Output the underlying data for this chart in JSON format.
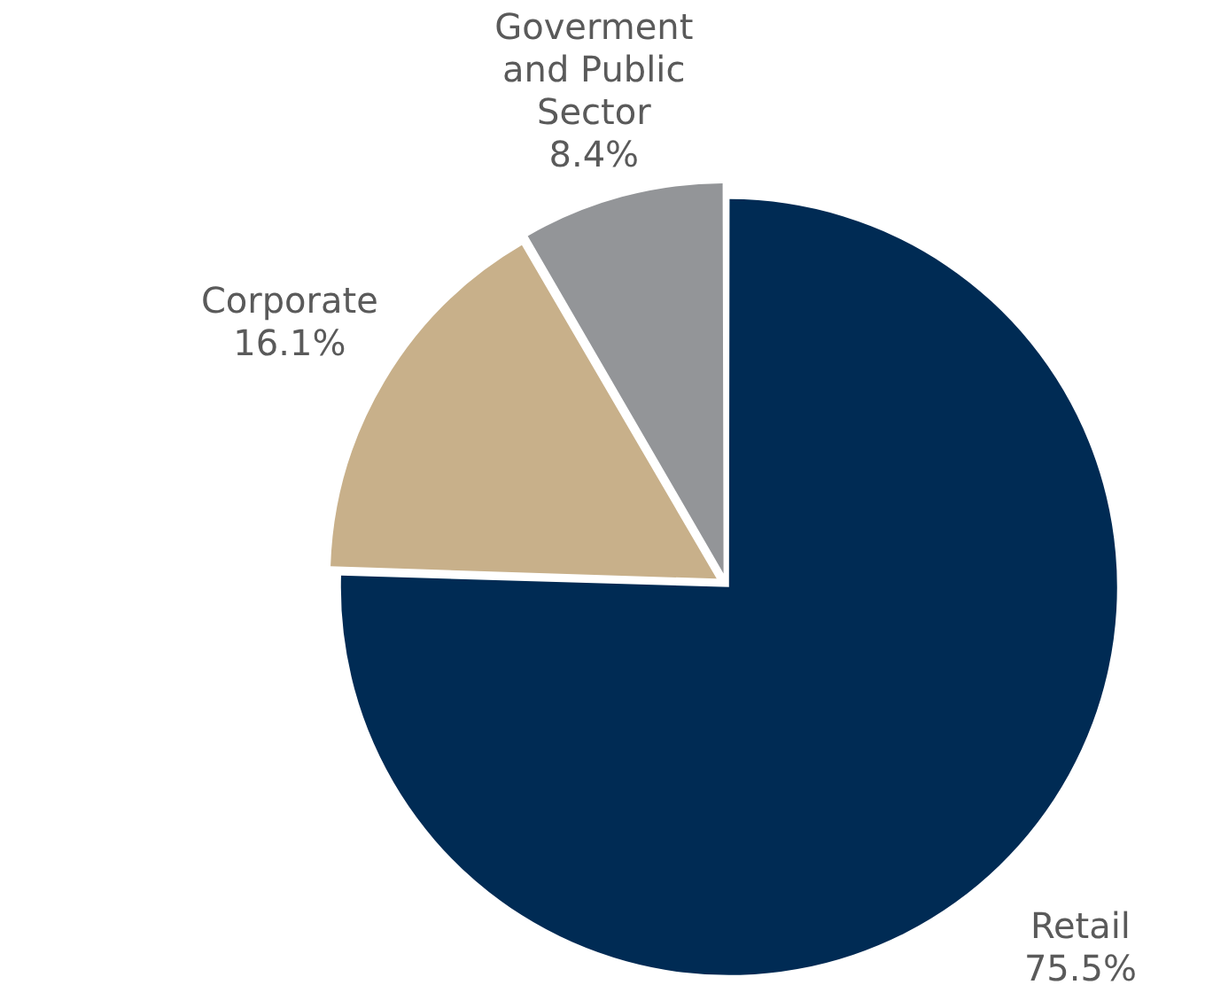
{
  "chart_data": {
    "type": "pie",
    "categories": [
      "Retail",
      "Corporate",
      "Goverment and Public Sector"
    ],
    "values": [
      75.5,
      16.1,
      8.4
    ],
    "colors": [
      "#002b54",
      "#c8b08a",
      "#939598"
    ],
    "value_labels": [
      "75.5%",
      "16.1%",
      "8.4%"
    ],
    "legend": false
  }
}
